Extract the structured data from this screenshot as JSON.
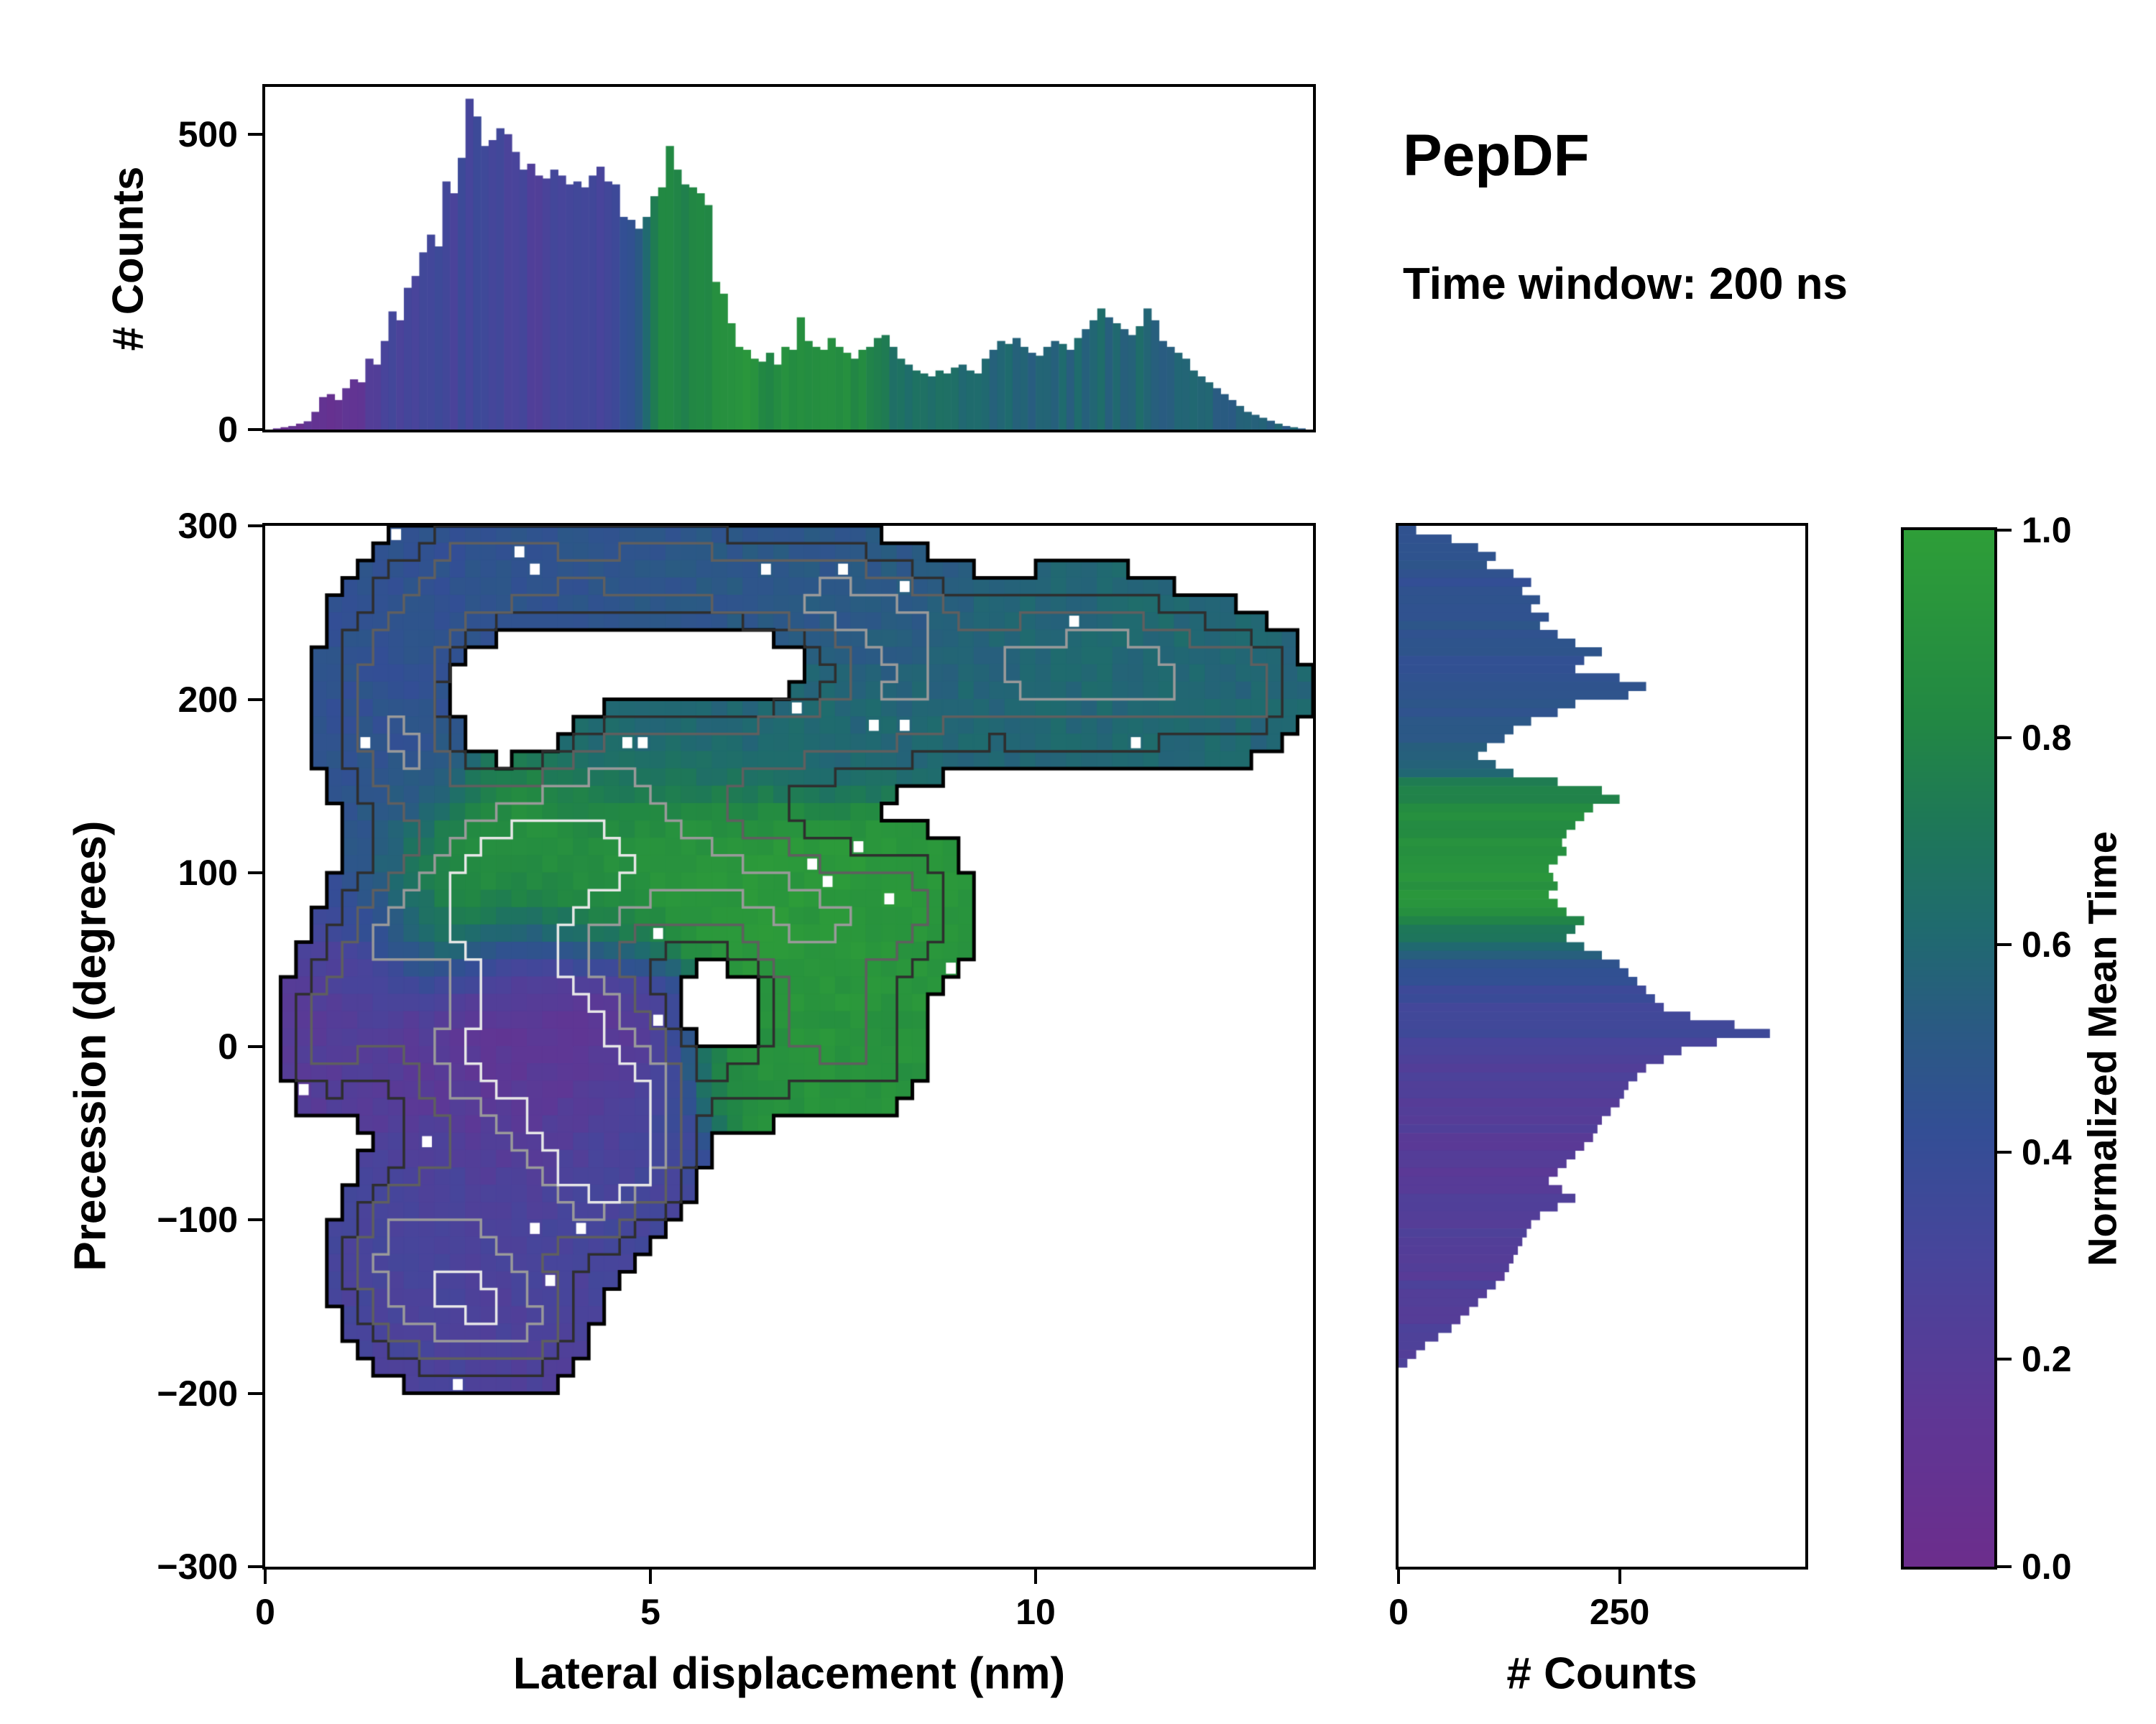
{
  "title": "PepDF",
  "subtitle": "Time window: 200 ns",
  "labels": {
    "top_ylabel": "# Counts",
    "main_xlabel": "Lateral displacement (nm)",
    "main_ylabel": "Precession (degrees)",
    "right_xlabel": "# Counts",
    "cbar_label": "Normalized Mean Time"
  },
  "colors": {
    "background": "#ffffff",
    "spine": "#000000",
    "colormap_stops": [
      [
        0.0,
        "#6c2d8c"
      ],
      [
        0.15,
        "#5e3795"
      ],
      [
        0.3,
        "#47459b"
      ],
      [
        0.42,
        "#334e95"
      ],
      [
        0.52,
        "#2a5a83"
      ],
      [
        0.62,
        "#1f6b6e"
      ],
      [
        0.72,
        "#1e7857"
      ],
      [
        0.82,
        "#228843"
      ],
      [
        1.0,
        "#2e9e38"
      ]
    ]
  },
  "axes": {
    "top": {
      "left": {
        "lim": [
          0,
          580
        ],
        "ticks": [
          0,
          500
        ],
        "labels": [
          "0",
          "500"
        ]
      }
    },
    "main": {
      "left": {
        "lim": [
          -300,
          300
        ],
        "ticks": [
          300,
          200,
          100,
          0,
          -100,
          -200,
          -300
        ],
        "labels": [
          "300",
          "200",
          "100",
          "0",
          "−100",
          "−200",
          "−300"
        ]
      },
      "bottom": {
        "lim": [
          0,
          13.6
        ],
        "ticks": [
          0,
          5,
          10
        ],
        "labels": [
          "0",
          "5",
          "10"
        ]
      }
    },
    "right": {
      "bottom": {
        "lim": [
          0,
          460
        ],
        "ticks": [
          0,
          250
        ],
        "labels": [
          "0",
          "250"
        ]
      }
    },
    "cbar": {
      "right": {
        "lim": [
          0,
          1
        ],
        "ticks": [
          0,
          0.2,
          0.4,
          0.6,
          0.8,
          1
        ],
        "labels": [
          "0.0",
          "0.2",
          "0.4",
          "0.6",
          "0.8",
          "1.0"
        ]
      }
    }
  },
  "chart_data": [
    {
      "type": "bar",
      "id": "top_histogram",
      "ylabel": "# Counts",
      "xlim": [
        0,
        13.6
      ],
      "ylim": [
        0,
        580
      ],
      "bin_start": 0,
      "bin_width": 0.1,
      "values": [
        0,
        2,
        4,
        6,
        10,
        14,
        30,
        55,
        60,
        50,
        70,
        85,
        80,
        120,
        110,
        150,
        200,
        185,
        240,
        260,
        300,
        330,
        310,
        420,
        400,
        460,
        560,
        530,
        480,
        490,
        510,
        500,
        470,
        440,
        450,
        430,
        425,
        440,
        430,
        415,
        420,
        410,
        430,
        445,
        420,
        415,
        360,
        355,
        340,
        360,
        395,
        410,
        480,
        440,
        415,
        410,
        400,
        380,
        250,
        230,
        180,
        140,
        135,
        120,
        115,
        130,
        110,
        140,
        135,
        190,
        150,
        140,
        135,
        155,
        140,
        130,
        120,
        135,
        140,
        155,
        160,
        140,
        120,
        110,
        100,
        95,
        90,
        100,
        95,
        105,
        110,
        100,
        95,
        120,
        135,
        150,
        145,
        155,
        140,
        130,
        125,
        140,
        150,
        145,
        135,
        155,
        170,
        185,
        205,
        190,
        180,
        170,
        160,
        175,
        205,
        185,
        150,
        140,
        130,
        120,
        100,
        90,
        80,
        70,
        60,
        50,
        40,
        30,
        25,
        20,
        15,
        10,
        6,
        4,
        2,
        0
      ],
      "color_stops": [
        [
          0,
          0.08
        ],
        [
          0.9,
          0.1
        ],
        [
          1.2,
          0.15
        ],
        [
          1.6,
          0.28
        ],
        [
          2.2,
          0.33
        ],
        [
          3.0,
          0.32
        ],
        [
          3.6,
          0.28
        ],
        [
          4.0,
          0.3
        ],
        [
          4.6,
          0.36
        ],
        [
          4.9,
          0.55
        ],
        [
          5.1,
          0.8
        ],
        [
          5.4,
          0.78
        ],
        [
          5.8,
          0.82
        ],
        [
          6.2,
          0.9
        ],
        [
          6.6,
          0.84
        ],
        [
          7.0,
          0.88
        ],
        [
          7.6,
          0.86
        ],
        [
          8.0,
          0.72
        ],
        [
          8.6,
          0.63
        ],
        [
          9.2,
          0.58
        ],
        [
          10.0,
          0.57
        ],
        [
          10.8,
          0.6
        ],
        [
          11.6,
          0.58
        ],
        [
          12.4,
          0.56
        ],
        [
          13.5,
          0.54
        ]
      ]
    },
    {
      "type": "heatmap",
      "id": "joint_density_map",
      "xlabel": "Lateral displacement (nm)",
      "ylabel": "Precession (degrees)",
      "xlim": [
        0,
        13.6
      ],
      "ylim": [
        -300,
        300
      ],
      "grid_nx": 68,
      "grid_ny": 60,
      "mask_threshold": 0.3,
      "contour_levels": [
        [
          0.3,
          "#000000",
          5
        ],
        [
          0.65,
          "#2e2e2e",
          3.5
        ],
        [
          1.0,
          "#5f5f5f",
          3.5
        ],
        [
          1.4,
          "#9a9a9a",
          3.5
        ],
        [
          1.75,
          "#e8e8e8",
          3.5
        ]
      ],
      "white_speckle_rate": 0.022,
      "blobs": [
        [
          1.6,
          200,
          0.9,
          55,
          0.45,
          1.0
        ],
        [
          2.4,
          250,
          1.0,
          50,
          0.45,
          1.0
        ],
        [
          3.3,
          275,
          0.9,
          40,
          0.46,
          0.9
        ],
        [
          2.0,
          160,
          0.8,
          40,
          0.47,
          0.8
        ],
        [
          4.8,
          272,
          1.0,
          33,
          0.48,
          0.9
        ],
        [
          6.2,
          268,
          1.2,
          33,
          0.5,
          1.0
        ],
        [
          7.5,
          255,
          1.0,
          33,
          0.5,
          1.0
        ],
        [
          8.3,
          240,
          0.8,
          33,
          0.52,
          0.9
        ],
        [
          9.6,
          215,
          0.9,
          45,
          0.58,
          1.0
        ],
        [
          10.8,
          220,
          1.0,
          45,
          0.6,
          1.3
        ],
        [
          12.0,
          210,
          1.0,
          40,
          0.6,
          1.0
        ],
        [
          12.9,
          205,
          0.6,
          33,
          0.58,
          0.7
        ],
        [
          4.3,
          163,
          1.0,
          38,
          0.58,
          0.9
        ],
        [
          5.8,
          172,
          1.2,
          33,
          0.6,
          0.9
        ],
        [
          7.2,
          183,
          1.0,
          33,
          0.6,
          0.85
        ],
        [
          8.3,
          195,
          0.9,
          33,
          0.6,
          0.9
        ],
        [
          3.3,
          115,
          1.0,
          45,
          0.93,
          1.3
        ],
        [
          2.6,
          80,
          0.9,
          40,
          0.88,
          1.1
        ],
        [
          4.3,
          95,
          1.0,
          45,
          0.9,
          1.1
        ],
        [
          5.3,
          110,
          0.9,
          40,
          0.92,
          0.9
        ],
        [
          6.3,
          95,
          0.9,
          40,
          0.95,
          0.9
        ],
        [
          7.3,
          75,
          1.0,
          45,
          0.95,
          0.95
        ],
        [
          8.4,
          80,
          0.8,
          40,
          0.93,
          0.85
        ],
        [
          7.0,
          20,
          0.9,
          45,
          0.92,
          0.8
        ],
        [
          7.9,
          -5,
          0.8,
          33,
          0.9,
          0.7
        ],
        [
          6.2,
          -15,
          0.7,
          33,
          0.88,
          0.7
        ],
        [
          3.3,
          25,
          0.9,
          50,
          0.12,
          1.4
        ],
        [
          4.3,
          5,
          0.9,
          45,
          0.15,
          1.3
        ],
        [
          2.4,
          -10,
          0.8,
          45,
          0.18,
          1.0
        ],
        [
          3.6,
          -45,
          0.9,
          45,
          0.2,
          1.1
        ],
        [
          4.6,
          -60,
          0.8,
          40,
          0.28,
          0.9
        ],
        [
          1.2,
          20,
          0.7,
          45,
          0.22,
          0.9
        ],
        [
          0.7,
          0,
          0.5,
          35,
          0.2,
          0.7
        ],
        [
          1.6,
          70,
          0.7,
          40,
          0.4,
          0.9
        ],
        [
          2.2,
          -100,
          0.9,
          45,
          0.3,
          1.0
        ],
        [
          3.0,
          -135,
          0.9,
          45,
          0.27,
          1.0
        ],
        [
          2.2,
          -160,
          0.8,
          35,
          0.28,
          0.9
        ],
        [
          3.4,
          -165,
          0.7,
          30,
          0.25,
          0.8
        ],
        [
          1.5,
          -125,
          0.6,
          40,
          0.3,
          0.8
        ],
        [
          4.2,
          -90,
          0.7,
          40,
          0.33,
          0.8
        ],
        [
          4.9,
          -65,
          0.6,
          30,
          0.35,
          0.7
        ],
        [
          5.1,
          -25,
          0.5,
          35,
          0.4,
          0.7
        ],
        [
          3.2,
          205,
          0.9,
          38,
          0.5,
          -1.6
        ],
        [
          5.8,
          218,
          1.3,
          22,
          0.5,
          -1.2
        ],
        [
          6.1,
          15,
          0.5,
          25,
          0.5,
          -1.0
        ]
      ]
    },
    {
      "type": "bar",
      "id": "right_histogram",
      "orientation": "horizontal",
      "xlabel": "# Counts",
      "xlim": [
        0,
        460
      ],
      "ylim": [
        -300,
        300
      ],
      "bin_start": 300,
      "bin_width": 5,
      "values": [
        20,
        60,
        90,
        110,
        100,
        130,
        150,
        140,
        160,
        150,
        170,
        160,
        180,
        200,
        230,
        210,
        200,
        250,
        280,
        260,
        200,
        180,
        150,
        130,
        120,
        100,
        90,
        110,
        130,
        180,
        230,
        250,
        220,
        210,
        200,
        190,
        185,
        190,
        180,
        170,
        175,
        180,
        170,
        180,
        190,
        210,
        200,
        190,
        210,
        230,
        250,
        260,
        270,
        280,
        290,
        300,
        330,
        380,
        420,
        360,
        320,
        300,
        280,
        270,
        260,
        255,
        250,
        240,
        230,
        225,
        220,
        210,
        200,
        190,
        180,
        170,
        185,
        200,
        180,
        160,
        150,
        145,
        140,
        135,
        130,
        125,
        120,
        110,
        100,
        90,
        80,
        70,
        60,
        45,
        30,
        20,
        10,
        0,
        0,
        0,
        0,
        0,
        0,
        0,
        0,
        0,
        0,
        0,
        0,
        0,
        0,
        0,
        0,
        0,
        0,
        0,
        0,
        0,
        0,
        0
      ],
      "color_stops": [
        [
          -300,
          0.26
        ],
        [
          -185,
          0.26
        ],
        [
          -150,
          0.24
        ],
        [
          -110,
          0.22
        ],
        [
          -70,
          0.2
        ],
        [
          -30,
          0.22
        ],
        [
          -5,
          0.28
        ],
        [
          10,
          0.32
        ],
        [
          30,
          0.38
        ],
        [
          45,
          0.45
        ],
        [
          55,
          0.58
        ],
        [
          65,
          0.7
        ],
        [
          75,
          0.88
        ],
        [
          90,
          0.92
        ],
        [
          120,
          0.88
        ],
        [
          150,
          0.8
        ],
        [
          160,
          0.55
        ],
        [
          180,
          0.5
        ],
        [
          220,
          0.46
        ],
        [
          300,
          0.45
        ]
      ]
    },
    {
      "type": "colorbar",
      "id": "colorbar",
      "label": "Normalized Mean Time",
      "lim": [
        0,
        1
      ],
      "ticks": [
        0,
        0.2,
        0.4,
        0.6,
        0.8,
        1
      ],
      "ticklabels": [
        "0.0",
        "0.2",
        "0.4",
        "0.6",
        "0.8",
        "1.0"
      ]
    }
  ]
}
